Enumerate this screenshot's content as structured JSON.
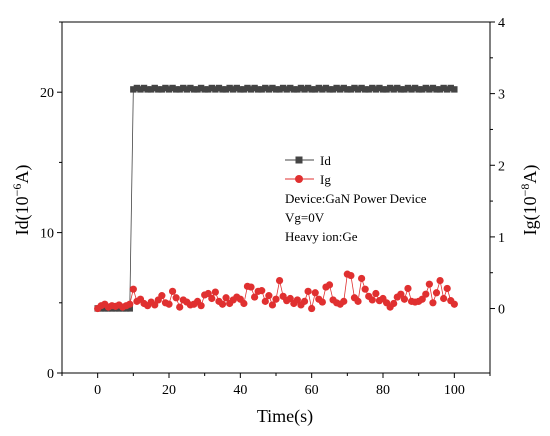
{
  "chart_data": {
    "type": "line",
    "xlabel": "Time(s)",
    "ylabel_left_main": "Id(10",
    "ylabel_left_exp": "−6",
    "ylabel_left_unit": "A)",
    "ylabel_right_main": "Ig(10",
    "ylabel_right_exp": "−8",
    "ylabel_right_unit": "A)",
    "xlim": [
      -10,
      110
    ],
    "ylim_left": [
      0,
      25
    ],
    "ylim_right": [
      -0.9,
      4
    ],
    "x_ticks": [
      0,
      20,
      40,
      60,
      80,
      100
    ],
    "y_left_ticks": [
      0,
      10,
      20
    ],
    "y_right_ticks": [
      0,
      1,
      2,
      3,
      4
    ],
    "annotations": [
      "Device:GaN Power Device",
      "Vg=0V",
      "Heavy ion:Ge"
    ],
    "series": [
      {
        "name": "Id",
        "axis": "left",
        "marker": "square",
        "color": "#444444",
        "x": [
          0,
          1,
          2,
          3,
          4,
          5,
          6,
          7,
          8,
          9,
          10,
          11,
          12,
          13,
          14,
          15,
          16,
          17,
          18,
          19,
          20,
          21,
          22,
          23,
          24,
          25,
          26,
          27,
          28,
          29,
          30,
          31,
          32,
          33,
          34,
          35,
          36,
          37,
          38,
          39,
          40,
          41,
          42,
          43,
          44,
          45,
          46,
          47,
          48,
          49,
          50,
          51,
          52,
          53,
          54,
          55,
          56,
          57,
          58,
          59,
          60,
          61,
          62,
          63,
          64,
          65,
          66,
          67,
          68,
          69,
          70,
          71,
          72,
          73,
          74,
          75,
          76,
          77,
          78,
          79,
          80,
          81,
          82,
          83,
          84,
          85,
          86,
          87,
          88,
          89,
          90,
          91,
          92,
          93,
          94,
          95,
          96,
          97,
          98,
          99,
          100
        ],
        "values": [
          4.6,
          4.6,
          4.6,
          4.6,
          4.6,
          4.6,
          4.6,
          4.6,
          4.6,
          4.6,
          20.2,
          20.3,
          20.2,
          20.3,
          20.2,
          20.2,
          20.3,
          20.2,
          20.2,
          20.3,
          20.2,
          20.3,
          20.2,
          20.2,
          20.3,
          20.2,
          20.3,
          20.2,
          20.2,
          20.3,
          20.2,
          20.2,
          20.3,
          20.2,
          20.3,
          20.2,
          20.2,
          20.3,
          20.2,
          20.3,
          20.2,
          20.2,
          20.3,
          20.2,
          20.3,
          20.2,
          20.2,
          20.3,
          20.2,
          20.3,
          20.2,
          20.2,
          20.3,
          20.2,
          20.3,
          20.2,
          20.2,
          20.3,
          20.2,
          20.3,
          20.2,
          20.2,
          20.3,
          20.2,
          20.3,
          20.2,
          20.2,
          20.3,
          20.2,
          20.3,
          20.2,
          20.2,
          20.3,
          20.2,
          20.3,
          20.2,
          20.2,
          20.3,
          20.2,
          20.3,
          20.2,
          20.2,
          20.3,
          20.2,
          20.3,
          20.2,
          20.2,
          20.3,
          20.2,
          20.3,
          20.2,
          20.2,
          20.3,
          20.2,
          20.3,
          20.2,
          20.2,
          20.3,
          20.2,
          20.3,
          20.2
        ]
      },
      {
        "name": "Ig",
        "axis": "right",
        "marker": "circle",
        "color": "#e03030",
        "x": [
          0,
          1,
          2,
          3,
          4,
          5,
          6,
          7,
          8,
          9,
          10,
          11,
          12,
          13,
          14,
          15,
          16,
          17,
          18,
          19,
          20,
          21,
          22,
          23,
          24,
          25,
          26,
          27,
          28,
          29,
          30,
          31,
          32,
          33,
          34,
          35,
          36,
          37,
          38,
          39,
          40,
          41,
          42,
          43,
          44,
          45,
          46,
          47,
          48,
          49,
          50,
          51,
          52,
          53,
          54,
          55,
          56,
          57,
          58,
          59,
          60,
          61,
          62,
          63,
          64,
          65,
          66,
          67,
          68,
          69,
          70,
          71,
          72,
          73,
          74,
          75,
          76,
          77,
          78,
          79,
          80,
          81,
          82,
          83,
          84,
          85,
          86,
          87,
          88,
          89,
          90,
          91,
          92,
          93,
          94,
          95,
          96,
          97,
          98,
          99,
          100
        ],
        "values": [
          0.0,
          0.04,
          0.06,
          0.02,
          0.04,
          0.03,
          0.05,
          0.02,
          0.04,
          0.06,
          0.27,
          0.1,
          0.13,
          0.07,
          0.04,
          0.09,
          0.05,
          0.12,
          0.18,
          0.08,
          0.06,
          0.24,
          0.15,
          0.02,
          0.12,
          0.09,
          0.05,
          0.06,
          0.1,
          0.04,
          0.19,
          0.21,
          0.14,
          0.23,
          0.1,
          0.06,
          0.15,
          0.07,
          0.12,
          0.16,
          0.13,
          0.07,
          0.31,
          0.3,
          0.16,
          0.24,
          0.25,
          0.1,
          0.18,
          0.05,
          0.13,
          0.39,
          0.17,
          0.11,
          0.14,
          0.07,
          0.12,
          0.05,
          0.1,
          0.24,
          0.0,
          0.22,
          0.13,
          0.09,
          0.3,
          0.33,
          0.12,
          0.08,
          0.06,
          0.1,
          0.48,
          0.46,
          0.15,
          0.1,
          0.42,
          0.27,
          0.17,
          0.12,
          0.21,
          0.11,
          0.14,
          0.08,
          0.02,
          0.07,
          0.16,
          0.2,
          0.13,
          0.28,
          0.1,
          0.09,
          0.1,
          0.13,
          0.2,
          0.34,
          0.08,
          0.22,
          0.39,
          0.14,
          0.28,
          0.11,
          0.06
        ]
      }
    ]
  }
}
